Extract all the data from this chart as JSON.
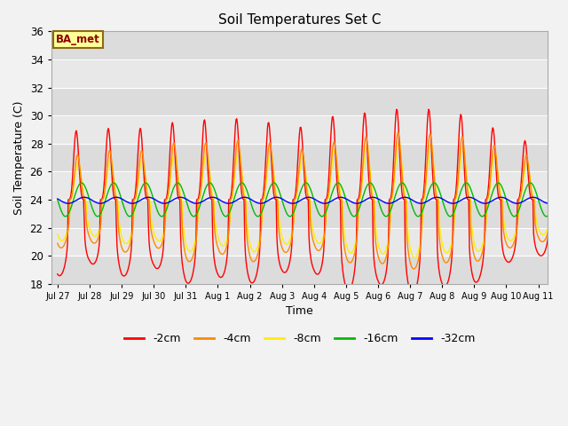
{
  "title": "Soil Temperatures Set C",
  "xlabel": "Time",
  "ylabel": "Soil Temperature (C)",
  "ylim": [
    18,
    36
  ],
  "annotation": "BA_met",
  "legend_labels": [
    "-2cm",
    "-4cm",
    "-8cm",
    "-16cm",
    "-32cm"
  ],
  "line_colors": [
    "#FF0000",
    "#FF8800",
    "#FFEE00",
    "#00BB00",
    "#0000FF"
  ],
  "background_color": "#DEDEDE",
  "tick_labels": [
    "Jul 27",
    "Jul 28",
    "Jul 29",
    "Jul 30",
    "Jul 31",
    "Aug 1",
    "Aug 2",
    "Aug 3",
    "Aug 4",
    "Aug 5",
    "Aug 6",
    "Aug 7",
    "Aug 8",
    "Aug 9",
    "Aug 10",
    "Aug 11"
  ],
  "yticks": [
    18,
    20,
    22,
    24,
    26,
    28,
    30,
    32,
    34,
    36
  ],
  "num_days": 16,
  "pts_per_day": 48
}
